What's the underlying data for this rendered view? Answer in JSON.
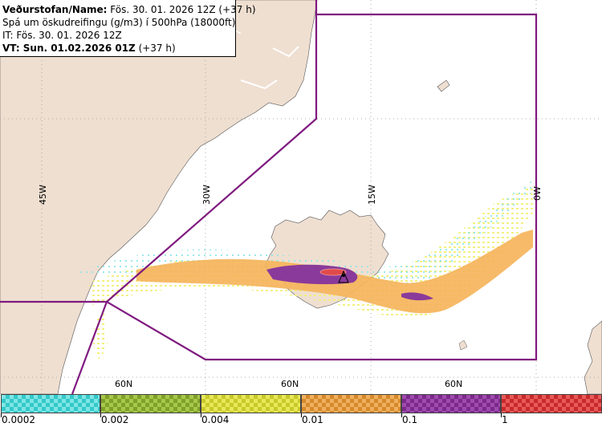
{
  "header": {
    "line1_bold": "Veðurstofan/Name:",
    "line1_rest": " Fös. 30. 01. 2026 12Z (+37 h)",
    "line2": "Spá um öskudreifingu (g/m3) í 500hPa (18000ft)",
    "line3": "IT: Fös. 30. 01. 2026 12Z",
    "line4_bold": "VT: Sun. 01.02.2026 01Z",
    "line4_rest": " (+37 h)"
  },
  "map": {
    "lon_labels": [
      "45W",
      "30W",
      "15W",
      "0W"
    ],
    "lat_labels": [
      "60N",
      "60N",
      "60N"
    ],
    "colors": {
      "land": "#efdfd1",
      "boundary": "#7f1a7f",
      "graticule": "#999999"
    }
  },
  "legend": {
    "bins": [
      {
        "color": "#33c9c9",
        "alt": "#7fe5e5"
      },
      {
        "color": "#7fa02a",
        "alt": "#a8c84a"
      },
      {
        "color": "#c9c92a",
        "alt": "#e8e85a"
      },
      {
        "color": "#d68a2a",
        "alt": "#f0b060"
      },
      {
        "color": "#7a2a8a",
        "alt": "#a04aaf"
      },
      {
        "color": "#c82a2a",
        "alt": "#e85a5a"
      }
    ],
    "ticks": [
      "0.0002",
      "0.002",
      "0.004",
      "0.01",
      "0.1",
      "1"
    ]
  }
}
